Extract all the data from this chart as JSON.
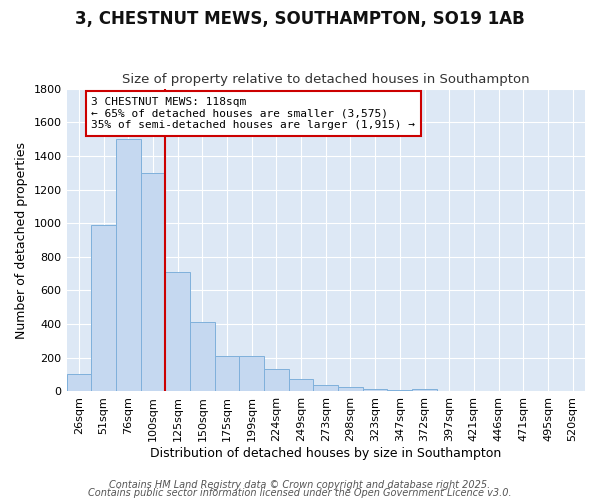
{
  "title": "3, CHESTNUT MEWS, SOUTHAMPTON, SO19 1AB",
  "subtitle": "Size of property relative to detached houses in Southampton",
  "xlabel": "Distribution of detached houses by size in Southampton",
  "ylabel": "Number of detached properties",
  "categories": [
    "26sqm",
    "51sqm",
    "76sqm",
    "100sqm",
    "125sqm",
    "150sqm",
    "175sqm",
    "199sqm",
    "224sqm",
    "249sqm",
    "273sqm",
    "298sqm",
    "323sqm",
    "347sqm",
    "372sqm",
    "397sqm",
    "421sqm",
    "446sqm",
    "471sqm",
    "495sqm",
    "520sqm"
  ],
  "values": [
    105,
    990,
    1500,
    1300,
    710,
    410,
    210,
    210,
    135,
    75,
    40,
    25,
    15,
    10,
    15,
    0,
    0,
    0,
    0,
    0,
    0
  ],
  "bar_color": "#c5d8f0",
  "bar_edgecolor": "#7fb0db",
  "vline_color": "#cc0000",
  "vline_pos": 3.5,
  "annotation_text": "3 CHESTNUT MEWS: 118sqm\n← 65% of detached houses are smaller (3,575)\n35% of semi-detached houses are larger (1,915) →",
  "annotation_box_color": "#ffffff",
  "annotation_box_edgecolor": "#cc0000",
  "ylim": [
    0,
    1800
  ],
  "yticks": [
    0,
    200,
    400,
    600,
    800,
    1000,
    1200,
    1400,
    1600,
    1800
  ],
  "fig_bg_color": "#ffffff",
  "plot_bg_color": "#dde8f5",
  "grid_color": "#ffffff",
  "footer_line1": "Contains HM Land Registry data © Crown copyright and database right 2025.",
  "footer_line2": "Contains public sector information licensed under the Open Government Licence v3.0.",
  "title_fontsize": 12,
  "subtitle_fontsize": 9.5,
  "axis_label_fontsize": 9,
  "tick_fontsize": 8,
  "annotation_fontsize": 8,
  "footer_fontsize": 7
}
